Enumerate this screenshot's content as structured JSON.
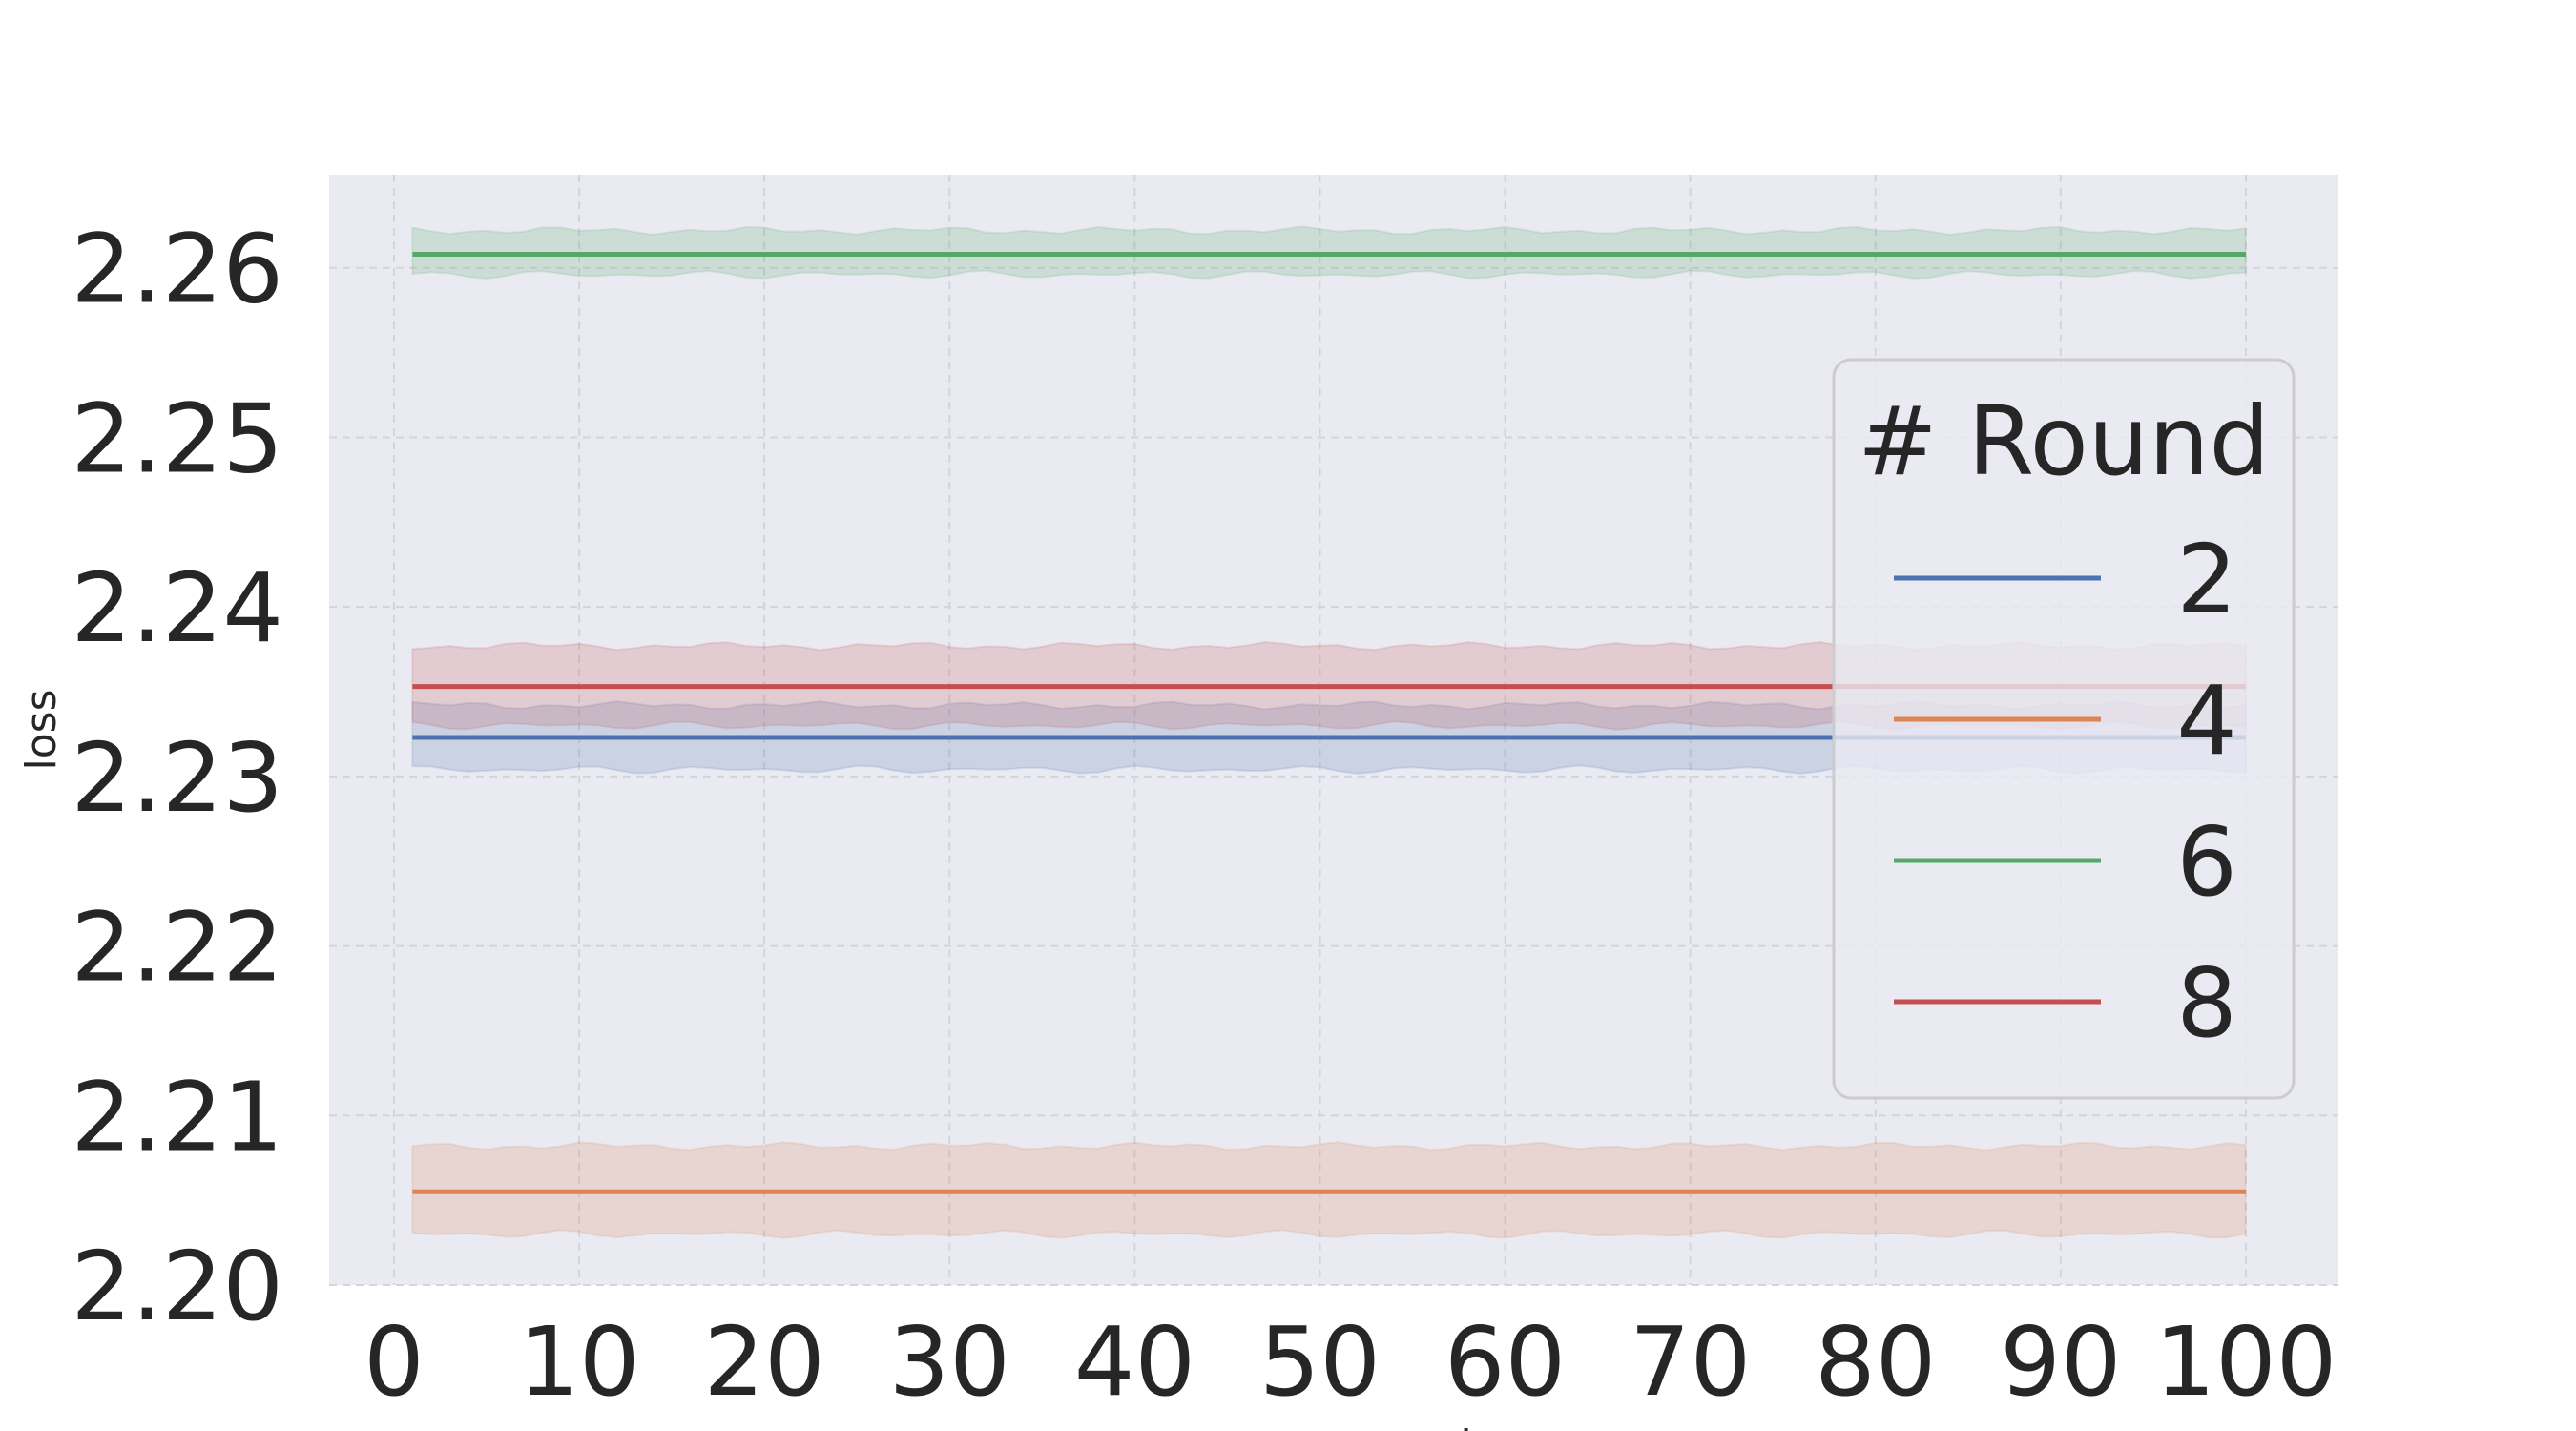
{
  "chart_data": {
    "type": "line",
    "title": "",
    "xlabel": "server_round",
    "ylabel": "loss",
    "xlim": [
      -3.5,
      105
    ],
    "ylim": [
      2.2,
      2.2655
    ],
    "xticks": [
      0,
      10,
      20,
      30,
      40,
      50,
      60,
      70,
      80,
      90,
      100
    ],
    "xtick_labels": [
      "0",
      "10",
      "20",
      "30",
      "40",
      "50",
      "60",
      "70",
      "80",
      "90",
      "100"
    ],
    "yticks": [
      2.2,
      2.21,
      2.22,
      2.23,
      2.24,
      2.25,
      2.26
    ],
    "ytick_labels": [
      "2.20",
      "2.21",
      "2.22",
      "2.23",
      "2.24",
      "2.25",
      "2.26"
    ],
    "grid": true,
    "legend": {
      "title": "# Round",
      "placement": "right"
    },
    "x_range": [
      1,
      100
    ],
    "series": [
      {
        "name": "2",
        "color": "#4c72b0",
        "mean": 2.2323,
        "band": [
          2.2304,
          2.2342
        ]
      },
      {
        "name": "4",
        "color": "#dd8452",
        "mean": 2.2055,
        "band": [
          2.203,
          2.2082
        ]
      },
      {
        "name": "6",
        "color": "#55a868",
        "mean": 2.2608,
        "band": [
          2.2596,
          2.2622
        ]
      },
      {
        "name": "8",
        "color": "#c44e52",
        "mean": 2.2353,
        "band": [
          2.233,
          2.2377
        ]
      }
    ]
  }
}
